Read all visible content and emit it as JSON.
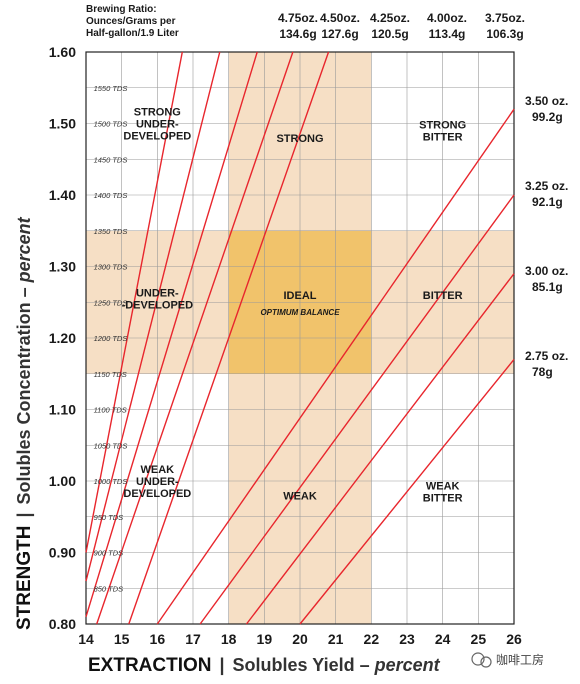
{
  "chart_data": {
    "type": "line",
    "header": [
      "Brewing Ratio:",
      "Ounces/Grams per",
      "Half-gallon/1.9 Liter"
    ],
    "x_ticks": [
      "14",
      "15",
      "16",
      "17",
      "18",
      "19",
      "20",
      "21",
      "22",
      "23",
      "24",
      "25",
      "26"
    ],
    "y_ticks": [
      "0.80",
      "0.90",
      "1.00",
      "1.10",
      "1.20",
      "1.30",
      "1.40",
      "1.50",
      "1.60"
    ],
    "xlim": [
      14,
      26
    ],
    "ylim": [
      0.8,
      1.6
    ],
    "grid": true,
    "tds_labels": [
      {
        "y": 1.55,
        "text": "1550 TDS"
      },
      {
        "y": 1.5,
        "text": "1500 TDS"
      },
      {
        "y": 1.45,
        "text": "1450 TDS"
      },
      {
        "y": 1.4,
        "text": "1400 TDS"
      },
      {
        "y": 1.35,
        "text": "1350 TDS"
      },
      {
        "y": 1.3,
        "text": "1300 TDS"
      },
      {
        "y": 1.25,
        "text": "1250 TDS"
      },
      {
        "y": 1.2,
        "text": "1200 TDS"
      },
      {
        "y": 1.15,
        "text": "1150 TDS"
      },
      {
        "y": 1.1,
        "text": "1100 TDS"
      },
      {
        "y": 1.05,
        "text": "1050 TDS"
      },
      {
        "y": 1.0,
        "text": "1000 TDS"
      },
      {
        "y": 0.95,
        "text": "950 TDS"
      },
      {
        "y": 0.9,
        "text": "900 TDS"
      },
      {
        "y": 0.85,
        "text": "850 TDS"
      }
    ],
    "top_ratio_labels": [
      {
        "line1": "4.75oz.",
        "line2": "134.6g"
      },
      {
        "line1": "4.50oz.",
        "line2": "127.6g"
      },
      {
        "line1": "4.25oz.",
        "line2": "120.5g"
      },
      {
        "line1": "4.00oz.",
        "line2": "113.4g"
      },
      {
        "line1": "3.75oz.",
        "line2": "106.3g"
      }
    ],
    "right_ratio_labels": [
      {
        "line1": "3.50 oz.",
        "line2": "99.2g"
      },
      {
        "line1": "3.25 oz.",
        "line2": "92.1g"
      },
      {
        "line1": "3.00 oz.",
        "line2": "85.1g"
      },
      {
        "line1": "2.75 oz.",
        "line2": "78g"
      }
    ],
    "series": [
      {
        "ratio_oz": 4.75,
        "points": [
          [
            14,
            0.9
          ],
          [
            16.7,
            1.6
          ]
        ]
      },
      {
        "ratio_oz": 4.5,
        "points": [
          [
            14,
            0.86
          ],
          [
            17.75,
            1.6
          ]
        ]
      },
      {
        "ratio_oz": 4.25,
        "points": [
          [
            14,
            0.81
          ],
          [
            18.8,
            1.6
          ]
        ]
      },
      {
        "ratio_oz": 4.0,
        "points": [
          [
            14.3,
            0.8
          ],
          [
            19.8,
            1.6
          ]
        ]
      },
      {
        "ratio_oz": 3.75,
        "points": [
          [
            15.2,
            0.8
          ],
          [
            20.8,
            1.6
          ]
        ]
      },
      {
        "ratio_oz": 3.5,
        "points": [
          [
            16.0,
            0.8
          ],
          [
            26,
            1.52
          ]
        ]
      },
      {
        "ratio_oz": 3.25,
        "points": [
          [
            17.2,
            0.8
          ],
          [
            26,
            1.4
          ]
        ]
      },
      {
        "ratio_oz": 3.0,
        "points": [
          [
            18.5,
            0.8
          ],
          [
            26,
            1.29
          ]
        ]
      },
      {
        "ratio_oz": 2.75,
        "points": [
          [
            20.0,
            0.8
          ],
          [
            26,
            1.17
          ]
        ]
      }
    ],
    "regions": {
      "ideal_x": [
        18,
        22
      ],
      "ideal_y": [
        1.15,
        1.35
      ],
      "colors": {
        "band": "#f6dfc5",
        "ideal": "#f1c36b",
        "line": "#e8262d",
        "grid": "#9a9a9a"
      }
    },
    "zone_labels": [
      {
        "lines": [
          "STRONG",
          "UNDER-",
          "DEVELOPED"
        ],
        "x": 16.0,
        "y": 1.5
      },
      {
        "lines": [
          "STRONG"
        ],
        "x": 20.0,
        "y": 1.48
      },
      {
        "lines": [
          "STRONG",
          "BITTER"
        ],
        "x": 24.0,
        "y": 1.49
      },
      {
        "lines": [
          "UNDER-",
          "-DEVELOPED"
        ],
        "x": 16.0,
        "y": 1.255
      },
      {
        "lines": [
          "IDEAL"
        ],
        "x": 20.0,
        "y": 1.26
      },
      {
        "lines": [
          "BITTER"
        ],
        "x": 24.0,
        "y": 1.26
      },
      {
        "lines": [
          "WEAK",
          "UNDER-",
          "DEVELOPED"
        ],
        "x": 16.0,
        "y": 1.0
      },
      {
        "lines": [
          "WEAK"
        ],
        "x": 20.0,
        "y": 0.98
      },
      {
        "lines": [
          "WEAK",
          "BITTER"
        ],
        "x": 24.0,
        "y": 0.985
      }
    ],
    "ideal_sublabel": "OPTIMUM BALANCE",
    "ylabel": {
      "bold": "STRENGTH",
      "sep": "|",
      "text": "Solubles Concentration – ",
      "italic": "percent"
    },
    "xlabel": {
      "bold": "EXTRACTION",
      "sep": "|",
      "text": "Solubles Yield – ",
      "italic": "percent"
    }
  },
  "watermark": "咖啡工房"
}
